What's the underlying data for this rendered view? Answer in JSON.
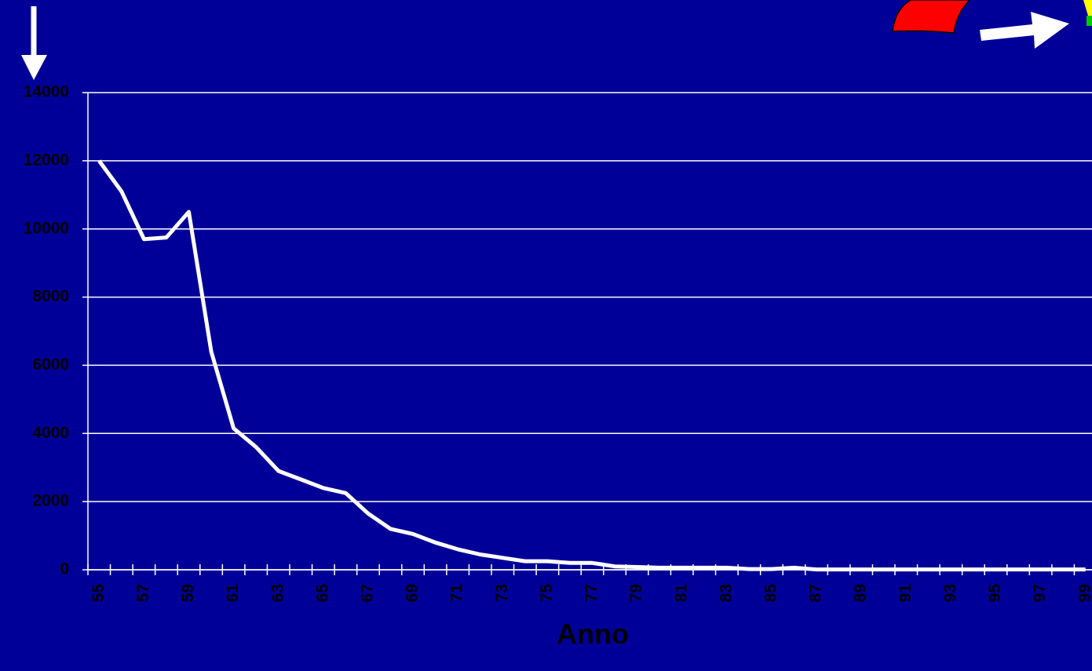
{
  "chart_data": {
    "type": "line",
    "x_label": "Anno",
    "categories": [
      "55",
      null,
      "57",
      null,
      "59",
      null,
      "61",
      null,
      "63",
      null,
      "65",
      null,
      "67",
      null,
      "69",
      null,
      "71",
      null,
      "73",
      null,
      "75",
      null,
      "77",
      null,
      "79",
      null,
      "81",
      null,
      "83",
      null,
      "85",
      null,
      "87",
      null,
      "89",
      null,
      "91",
      null,
      "93",
      null,
      "95",
      null,
      "97",
      null,
      "99"
    ],
    "series": [
      {
        "color": "#ffffff",
        "values": [
          12000,
          11100,
          9700,
          9750,
          10500,
          6400,
          4150,
          3600,
          2900,
          2650,
          2400,
          2250,
          1650,
          1200,
          1050,
          800,
          600,
          450,
          350,
          250,
          250,
          200,
          200,
          100,
          80,
          60,
          60,
          60,
          60,
          20,
          20,
          60,
          10,
          10,
          10,
          10,
          10,
          10,
          10,
          10,
          10,
          10,
          10,
          10,
          10
        ]
      }
    ],
    "ylim": [
      0,
      14000
    ],
    "yticks": [
      0,
      2000,
      4000,
      6000,
      8000,
      10000,
      12000,
      14000
    ],
    "grid": true
  }
}
